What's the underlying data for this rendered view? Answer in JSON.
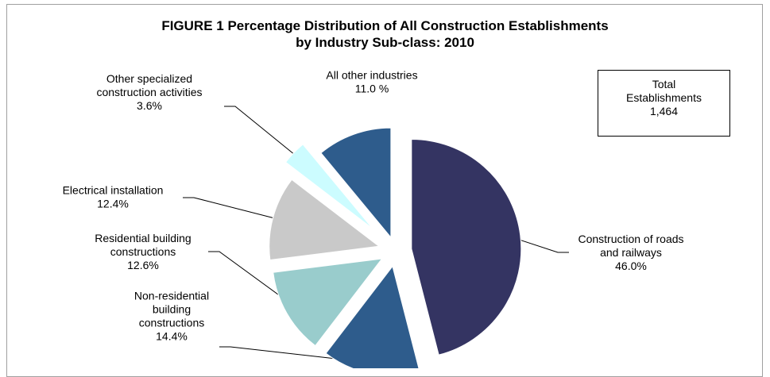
{
  "title": {
    "line1": "FIGURE 1  Percentage Distribution of All Construction Establishments",
    "line2": "by Industry Sub-class: 2010"
  },
  "total_box": {
    "line1": "Total",
    "line2": "Establishments",
    "value": "1,464"
  },
  "chart_data": {
    "type": "pie",
    "title": "FIGURE 1  Percentage Distribution of All Construction Establishments by Industry Sub-class: 2010",
    "slices": [
      {
        "label_lines": [
          "Construction of roads",
          "and railways"
        ],
        "pct": "46.0%",
        "value": 46.0,
        "color": "#343462"
      },
      {
        "label_lines": [
          "Non-residential",
          "building",
          "constructions"
        ],
        "pct": "14.4%",
        "value": 14.4,
        "color": "#2e5c8c"
      },
      {
        "label_lines": [
          "Residential  building",
          "constructions"
        ],
        "pct": "12.6%",
        "value": 12.6,
        "color": "#99cccc"
      },
      {
        "label_lines": [
          "Electrical installation"
        ],
        "pct": "12.4%",
        "value": 12.4,
        "color": "#c9c9c9"
      },
      {
        "label_lines": [
          "Other specialized",
          "construction activities"
        ],
        "pct": "3.6%",
        "value": 3.6,
        "color": "#ccfcff"
      },
      {
        "label_lines": [
          "All other industries"
        ],
        "pct": "11.0 %",
        "value": 11.0,
        "color": "#2e5c8c"
      }
    ]
  }
}
